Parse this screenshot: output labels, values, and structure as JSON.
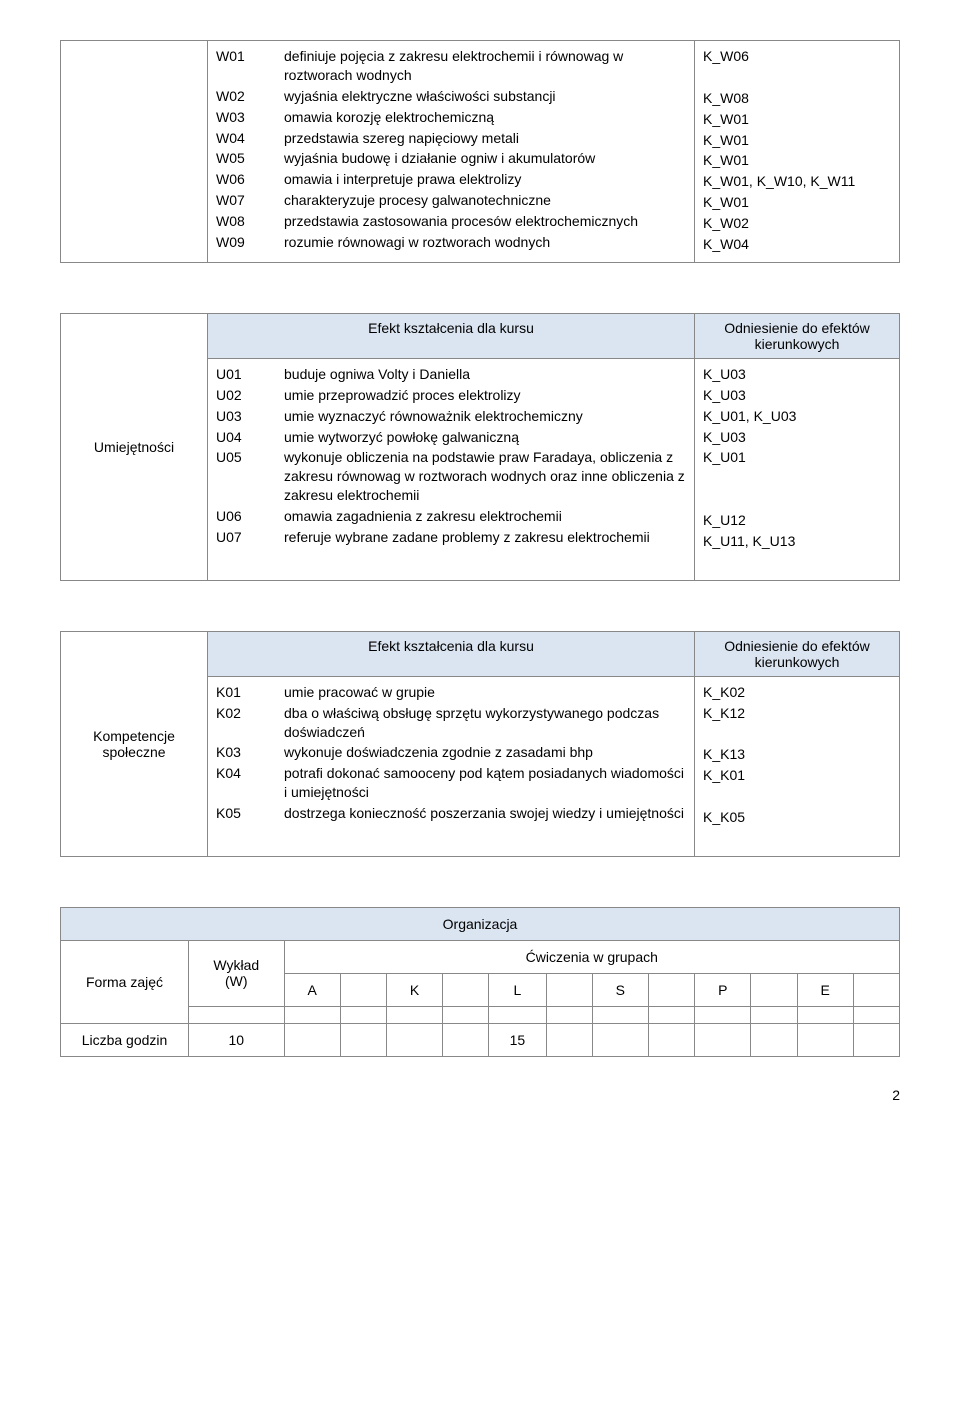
{
  "table1": {
    "rows": [
      {
        "code": "W01",
        "desc": "definiuje pojęcia z zakresu elektrochemii i równowag w roztworach wodnych",
        "out": "K_W06"
      },
      {
        "code": "W02",
        "desc": "wyjaśnia elektryczne właściwości substancji",
        "out": "K_W08"
      },
      {
        "code": "W03",
        "desc": "omawia korozję elektrochemiczną",
        "out": "K_W01"
      },
      {
        "code": "W04",
        "desc": "przedstawia szereg napięciowy metali",
        "out": "K_W01"
      },
      {
        "code": "W05",
        "desc": "wyjaśnia budowę i działanie ogniw i akumulatorów",
        "out": "K_W01"
      },
      {
        "code": "W06",
        "desc": "omawia i interpretuje prawa elektrolizy",
        "out": "K_W01, K_W10, K_W11"
      },
      {
        "code": "W07",
        "desc": "charakteryzuje procesy galwanotechniczne",
        "out": "K_W01"
      },
      {
        "code": "W08",
        "desc": "przedstawia zastosowania procesów elektrochemicznych",
        "out": "K_W02"
      },
      {
        "code": "W09",
        "desc": "rozumie równowagi w roztworach wodnych",
        "out": "K_W04"
      }
    ]
  },
  "table2": {
    "left_label": "Umiejętności",
    "header_mid": "Efekt kształcenia dla kursu",
    "header_right": "Odniesienie do efektów kierunkowych",
    "rows": [
      {
        "code": "U01",
        "desc": "buduje ogniwa Volty i Daniella",
        "out": "K_U03"
      },
      {
        "code": "U02",
        "desc": "umie przeprowadzić proces elektrolizy",
        "out": "K_U03"
      },
      {
        "code": "U03",
        "desc": "umie wyznaczyć równoważnik elektrochemiczny",
        "out": "K_U01, K_U03"
      },
      {
        "code": "U04",
        "desc": "umie wytworzyć powłokę galwaniczną",
        "out": "K_U03"
      },
      {
        "code": "U05",
        "desc": "wykonuje obliczenia na podstawie praw Faradaya, obliczenia z zakresu równowag w roztworach wodnych oraz inne obliczenia z zakresu elektrochemii",
        "out": "K_U01"
      },
      {
        "code": "U06",
        "desc": "omawia zagadnienia z zakresu elektrochemii",
        "out": "K_U12"
      },
      {
        "code": "U07",
        "desc": "referuje wybrane zadane problemy z zakresu elektrochemii",
        "out": "K_U11, K_U13"
      }
    ]
  },
  "table3": {
    "left_label": "Kompetencje społeczne",
    "header_mid": "Efekt kształcenia dla kursu",
    "header_right": "Odniesienie do efektów kierunkowych",
    "rows": [
      {
        "code": "K01",
        "desc": "umie pracować w grupie",
        "out": "K_K02"
      },
      {
        "code": "K02",
        "desc": "dba o właściwą obsługę sprzętu wykorzystywanego podczas doświadczeń",
        "out": "K_K12"
      },
      {
        "code": "K03",
        "desc": "wykonuje doświadczenia zgodnie z zasadami bhp",
        "out": "K_K13"
      },
      {
        "code": "K04",
        "desc": "potrafi dokonać samooceny pod kątem posiadanych wiadomości i umiejętności",
        "out": "K_K01"
      },
      {
        "code": "K05",
        "desc": "dostrzega konieczność poszerzania swojej wiedzy i umiejętności",
        "out": "K_K05"
      }
    ]
  },
  "org": {
    "title": "Organizacja",
    "forma": "Forma zajęć",
    "wyklad": "Wykład",
    "wyklad_sub": "(W)",
    "cwiczenia": "Ćwiczenia w grupach",
    "cols": [
      "A",
      "K",
      "L",
      "S",
      "P",
      "E"
    ],
    "liczba_label": "Liczba godzin",
    "liczba_w": "10",
    "liczba_l": "15"
  },
  "page": "2"
}
